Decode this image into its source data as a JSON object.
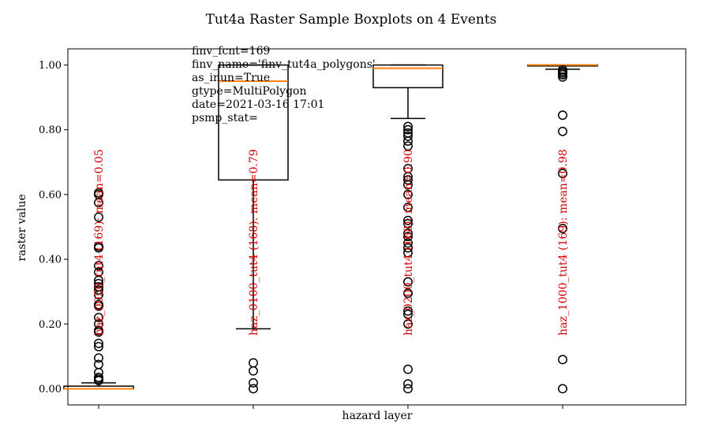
{
  "chart_data": {
    "type": "box",
    "title": "Tut4a Raster Sample Boxplots on 4 Events",
    "xlabel": "hazard layer",
    "ylabel": "raster value",
    "ylim": [
      -0.05,
      1.05
    ],
    "yticks": [
      "0.00",
      "0.20",
      "0.40",
      "0.60",
      "0.80",
      "1.00"
    ],
    "metadata_lines": [
      "finv_fcnt=169",
      "finv_name='finv_tut4a_polygons'",
      "as_inun=True",
      "gtype=MultiPolygon",
      "date=2021-03-16 17:01",
      "psmp_stat="
    ],
    "boxes": [
      {
        "label": "haz_0050_tut4 (169): mean=0.05",
        "q1": 0.0,
        "median": 0.0,
        "q3": 0.008,
        "whisker_low": 0.0,
        "whisker_high": 0.018,
        "fliers": [
          0.025,
          0.03,
          0.035,
          0.05,
          0.075,
          0.095,
          0.13,
          0.14,
          0.175,
          0.18,
          0.2,
          0.22,
          0.255,
          0.26,
          0.29,
          0.305,
          0.315,
          0.325,
          0.335,
          0.36,
          0.38,
          0.435,
          0.44,
          0.53,
          0.575,
          0.6,
          0.605
        ]
      },
      {
        "label": "haz_0100_tut4 (168): mean=0.79",
        "q1": 0.645,
        "median": 0.95,
        "q3": 1.0,
        "whisker_low": 0.185,
        "whisker_high": 1.0,
        "fliers": [
          0.0,
          0.018,
          0.055,
          0.08
        ]
      },
      {
        "label": "haz_0200_tut4 (168): mean=0.90",
        "q1": 0.93,
        "median": 0.99,
        "q3": 1.0,
        "whisker_low": 0.835,
        "whisker_high": 1.0,
        "fliers": [
          0.0,
          0.015,
          0.06,
          0.2,
          0.23,
          0.24,
          0.295,
          0.33,
          0.42,
          0.435,
          0.45,
          0.47,
          0.48,
          0.51,
          0.52,
          0.56,
          0.6,
          0.63,
          0.645,
          0.655,
          0.68,
          0.75,
          0.765,
          0.78,
          0.79,
          0.8,
          0.81
        ]
      },
      {
        "label": "haz_1000_tut4 (169): mean=0.98",
        "q1": 0.997,
        "median": 1.0,
        "q3": 1.0,
        "whisker_low": 0.987,
        "whisker_high": 1.0,
        "fliers": [
          0.0,
          0.09,
          0.495,
          0.665,
          0.795,
          0.845,
          0.963,
          0.97,
          0.975,
          0.98,
          0.985
        ]
      }
    ],
    "colors": {
      "median": "#ff7f0e",
      "annotation": "#d40000"
    }
  }
}
